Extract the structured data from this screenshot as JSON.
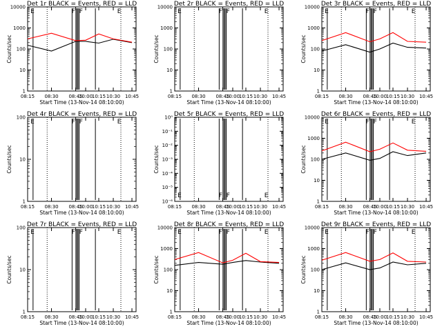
{
  "colors": {
    "events": "#000000",
    "lld": "#ff0000",
    "background": "#ffffff"
  },
  "x_tick_labels": [
    "08:15",
    "08:30",
    "08:45",
    "10:00",
    "10:15",
    "10:30",
    "10:45"
  ],
  "x_axis_label": "Start Time (13-Nov-14 08:10:00)",
  "y_axis_label": "Counts/sec",
  "flag_letters": [
    "E",
    "F",
    "F",
    "E"
  ],
  "chart_data": [
    {
      "type": "line",
      "title": "Det 1r BLACK = Events, RED = LLD",
      "yscale": "log",
      "ylim": [
        1,
        10000
      ],
      "y_ticks": [
        "1",
        "10",
        "100",
        "1000",
        "10000"
      ],
      "x": [
        0,
        1,
        2,
        3,
        4,
        5,
        6
      ],
      "series": [
        {
          "color": "#000000",
          "values": [
            150,
            80,
            230,
            230,
            190,
            290,
            200
          ]
        },
        {
          "color": "#ff0000",
          "values": [
            300,
            560,
            250,
            260,
            520,
            300,
            210
          ]
        }
      ]
    },
    {
      "type": "line",
      "title": "Det 2r BLACK = Events, RED = LLD",
      "yscale": "log",
      "ylim": [
        1,
        10000
      ],
      "y_ticks": [
        "1",
        "10",
        "100",
        "1000",
        "10000"
      ],
      "x": [
        0,
        1,
        2,
        3,
        4,
        5,
        6
      ],
      "series": []
    },
    {
      "type": "line",
      "title": "Det 3r BLACK = Events, RED = LLD",
      "yscale": "log",
      "ylim": [
        1,
        10000
      ],
      "y_ticks": [
        "1",
        "10",
        "100",
        "1000",
        "10000"
      ],
      "x": [
        0,
        1,
        2,
        3,
        4,
        5,
        6
      ],
      "series": [
        {
          "color": "#000000",
          "values": [
            80,
            160,
            70,
            100,
            190,
            120,
            110
          ]
        },
        {
          "color": "#ff0000",
          "values": [
            250,
            600,
            220,
            300,
            600,
            230,
            210
          ]
        }
      ]
    },
    {
      "type": "line",
      "title": "Det 4r BLACK = Events, RED = LLD",
      "yscale": "log",
      "ylim": [
        1,
        100
      ],
      "y_ticks": [
        "1",
        "10",
        "100"
      ],
      "x": [
        0,
        1,
        2,
        3,
        4,
        5,
        6
      ],
      "series": []
    },
    {
      "type": "line",
      "title": "Det 5r BLACK = Events, RED = LLD",
      "yscale": "log",
      "ylim": [
        1e-06,
        1
      ],
      "y_ticks": [
        "10⁻⁶",
        "10⁻⁵",
        "10⁻⁴",
        "10⁻³",
        "10⁻²",
        "10⁻¹",
        "10⁰"
      ],
      "x": [
        0,
        1,
        2,
        3,
        4,
        5,
        6
      ],
      "series": []
    },
    {
      "type": "line",
      "title": "Det 6r BLACK = Events, RED = LLD",
      "yscale": "log",
      "ylim": [
        1,
        10000
      ],
      "y_ticks": [
        "1",
        "10",
        "100",
        "1000",
        "10000"
      ],
      "x": [
        0,
        1,
        2,
        3,
        4,
        5,
        6
      ],
      "series": [
        {
          "color": "#000000",
          "values": [
            100,
            200,
            90,
            110,
            230,
            150,
            200
          ]
        },
        {
          "color": "#ff0000",
          "values": [
            250,
            650,
            230,
            300,
            600,
            270,
            240
          ]
        }
      ]
    },
    {
      "type": "line",
      "title": "Det 7r BLACK = Events, RED = LLD",
      "yscale": "log",
      "ylim": [
        1,
        100
      ],
      "y_ticks": [
        "1",
        "10",
        "100"
      ],
      "x": [
        0,
        1,
        2,
        3,
        4,
        5,
        6
      ],
      "series": []
    },
    {
      "type": "line",
      "title": "Det 8r BLACK = Events, RED = LLD",
      "yscale": "log",
      "ylim": [
        1,
        10000
      ],
      "y_ticks": [
        "1",
        "10",
        "100",
        "1000",
        "10000"
      ],
      "x": [
        0,
        1,
        2,
        3,
        4,
        5,
        6
      ],
      "series": [
        {
          "color": "#000000",
          "values": [
            160,
            220,
            180,
            220,
            270,
            230,
            200
          ]
        },
        {
          "color": "#ff0000",
          "values": [
            300,
            650,
            210,
            280,
            600,
            240,
            220
          ]
        }
      ]
    },
    {
      "type": "line",
      "title": "Det 9r BLACK = Events, RED = LLD",
      "yscale": "log",
      "ylim": [
        1,
        10000
      ],
      "y_ticks": [
        "1",
        "10",
        "100",
        "1000",
        "10000"
      ],
      "x": [
        0,
        1,
        2,
        3,
        4,
        5,
        6
      ],
      "series": [
        {
          "color": "#000000",
          "values": [
            100,
            210,
            100,
            120,
            230,
            170,
            200
          ]
        },
        {
          "color": "#ff0000",
          "values": [
            280,
            650,
            250,
            300,
            620,
            250,
            230
          ]
        }
      ]
    }
  ]
}
